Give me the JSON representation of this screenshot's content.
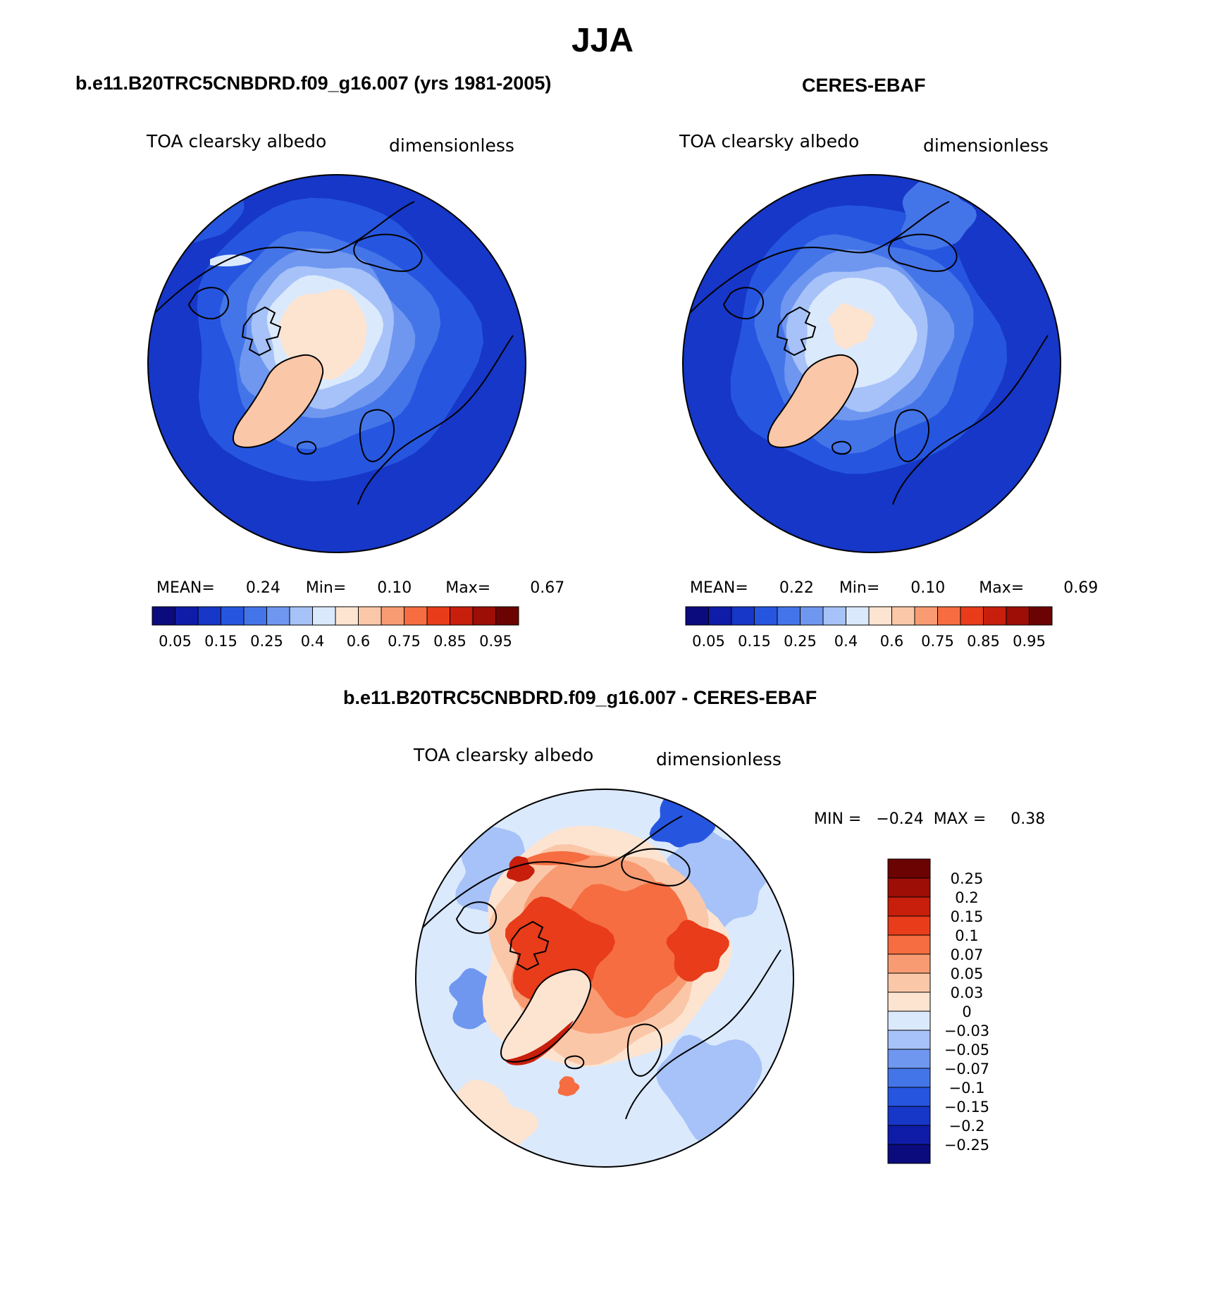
{
  "title": "JJA",
  "colors": {
    "seq": [
      "#0b0b7e",
      "#0e1ca8",
      "#1637c8",
      "#2656e0",
      "#4475e8",
      "#6f97f0",
      "#a6c2f8",
      "#dbe9fd",
      "#fde4d0",
      "#fbc7a9",
      "#f89b72",
      "#f56d40",
      "#e83c1a",
      "#c81e0c",
      "#9c0e06",
      "#6b0303"
    ],
    "diff": [
      "#0b0b7e",
      "#0e1ca8",
      "#1637c8",
      "#2656e0",
      "#4475e8",
      "#6f97f0",
      "#a6c2f8",
      "#dbe9fd",
      "#fde4d0",
      "#fbc7a9",
      "#f89b72",
      "#f56d40",
      "#e83c1a",
      "#c81e0c",
      "#9c0e06",
      "#6b0303"
    ],
    "ocean": "#2c5fe3",
    "land_low": "#3a6ee6"
  },
  "panels": [
    {
      "title": "b.e11.B20TRC5CNBDRD.f09_g16.007 (yrs 1981-2005)",
      "left_label": "TOA clearsky albedo",
      "right_label": "dimensionless",
      "mean_label": "MEAN=",
      "mean_value": "0.24",
      "min_label": "Min=",
      "min_value": "0.10",
      "max_label": "Max=",
      "max_value": "0.67",
      "ticks": [
        "0.05",
        "0.15",
        "0.25",
        "0.4",
        "0.6",
        "0.75",
        "0.85",
        "0.95"
      ]
    },
    {
      "title": "CERES-EBAF",
      "left_label": "TOA clearsky albedo",
      "right_label": "dimensionless",
      "mean_label": "MEAN=",
      "mean_value": "0.22",
      "min_label": "Min=",
      "min_value": "0.10",
      "max_label": "Max=",
      "max_value": "0.69",
      "ticks": [
        "0.05",
        "0.15",
        "0.25",
        "0.4",
        "0.6",
        "0.75",
        "0.85",
        "0.95"
      ]
    }
  ],
  "diff_panel": {
    "title": "b.e11.B20TRC5CNBDRD.f09_g16.007 - CERES-EBAF",
    "left_label": "TOA clearsky albedo",
    "right_label": "dimensionless",
    "minmax_text": "MIN =   −0.24  MAX =     0.38",
    "ticks": [
      "0.25",
      "0.2",
      "0.15",
      "0.1",
      "0.07",
      "0.05",
      "0.03",
      "0",
      "−0.03",
      "−0.05",
      "−0.07",
      "−0.1",
      "−0.15",
      "−0.2",
      "−0.25"
    ]
  }
}
